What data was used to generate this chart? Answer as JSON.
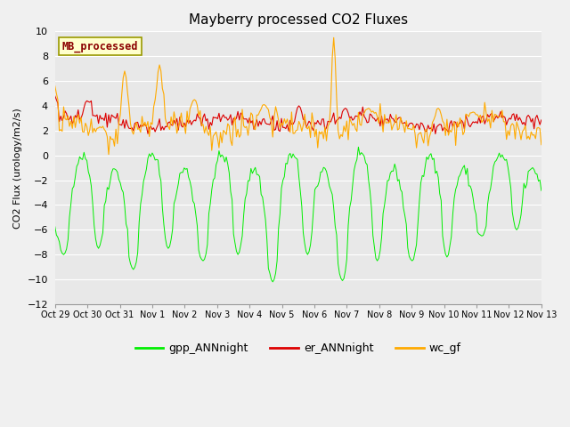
{
  "title": "Mayberry processed CO2 Fluxes",
  "ylabel": "CO2 Flux (urology/m2/s)",
  "ylim": [
    -12,
    10
  ],
  "yticks": [
    -12,
    -10,
    -8,
    -6,
    -4,
    -2,
    0,
    2,
    4,
    6,
    8,
    10
  ],
  "background_color": "#f0f0f0",
  "plot_bg_color": "#e8e8e8",
  "legend_label": "MB_processed",
  "legend_text_color": "#8B0000",
  "legend_box_color": "#ffffcc",
  "line_colors": {
    "gpp_ANNnight": "#00ee00",
    "er_ANNnight": "#dd0000",
    "wc_gf": "#ffaa00"
  },
  "x_tick_labels": [
    "Oct 29",
    "Oct 30",
    "Oct 31",
    "Nov 1",
    "Nov 2",
    "Nov 3",
    "Nov 4",
    "Nov 5",
    "Nov 6",
    "Nov 7",
    "Nov 8",
    "Nov 9",
    "Nov 10",
    "Nov 11",
    "Nov 12",
    "Nov 13"
  ],
  "n_points": 336,
  "seed": 42
}
